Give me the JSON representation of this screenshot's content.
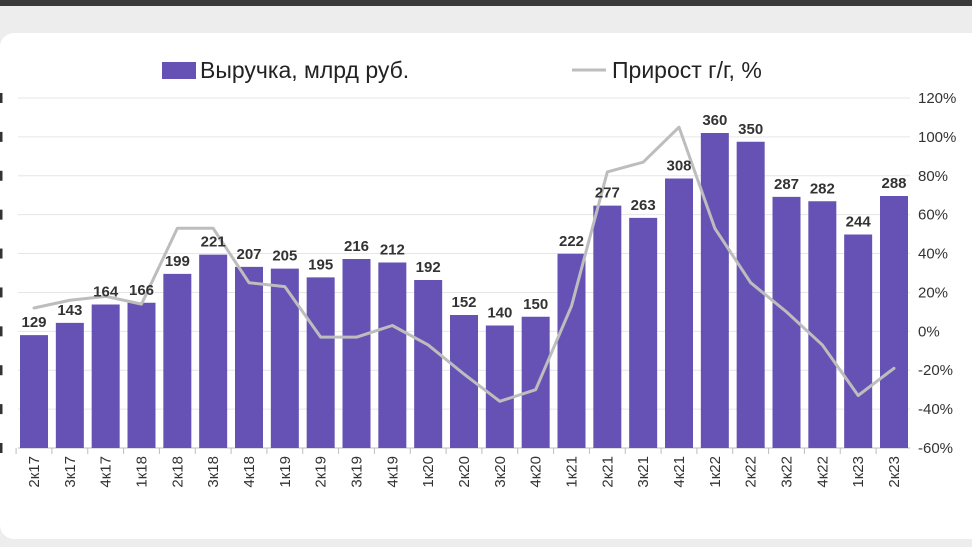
{
  "legend": {
    "bar_series": "Выручка, млрд руб.",
    "line_series": "Прирост г/г, %"
  },
  "colors": {
    "bar": "#6652b4",
    "line": "#bdbdbd",
    "grid": "#e6e6e6"
  },
  "chart_data": {
    "type": "bar",
    "categories": [
      "2к17",
      "3к17",
      "4к17",
      "1к18",
      "2к18",
      "3к18",
      "4к18",
      "1к19",
      "2к19",
      "3к19",
      "4к19",
      "1к20",
      "2к20",
      "3к20",
      "4к20",
      "1к21",
      "2к21",
      "3к21",
      "4к21",
      "1к22",
      "2к22",
      "3к22",
      "4к22",
      "1к23",
      "2к23"
    ],
    "series": [
      {
        "name": "Выручка, млрд руб.",
        "type": "bar",
        "axis": "left",
        "values": [
          129,
          143,
          164,
          166,
          199,
          221,
          207,
          205,
          195,
          216,
          212,
          192,
          152,
          140,
          150,
          222,
          277,
          263,
          308,
          360,
          350,
          287,
          282,
          244,
          288
        ]
      },
      {
        "name": "Прирост г/г, %",
        "type": "line",
        "axis": "right",
        "values": [
          12,
          16,
          18,
          14,
          53,
          53,
          25,
          23,
          -3,
          -3,
          3,
          -7,
          -22,
          -36,
          -30,
          13,
          82,
          87,
          105,
          53,
          25,
          10,
          -7,
          -33,
          -19
        ]
      }
    ],
    "y_left_lim": [
      0,
      400
    ],
    "y_right_lim": [
      -60,
      120
    ],
    "y_right_ticks": [
      "120%",
      "100%",
      "80%",
      "60%",
      "40%",
      "20%",
      "0%",
      "-20%",
      "-40%",
      "-60%"
    ],
    "grid": true,
    "legend_position": "top"
  }
}
